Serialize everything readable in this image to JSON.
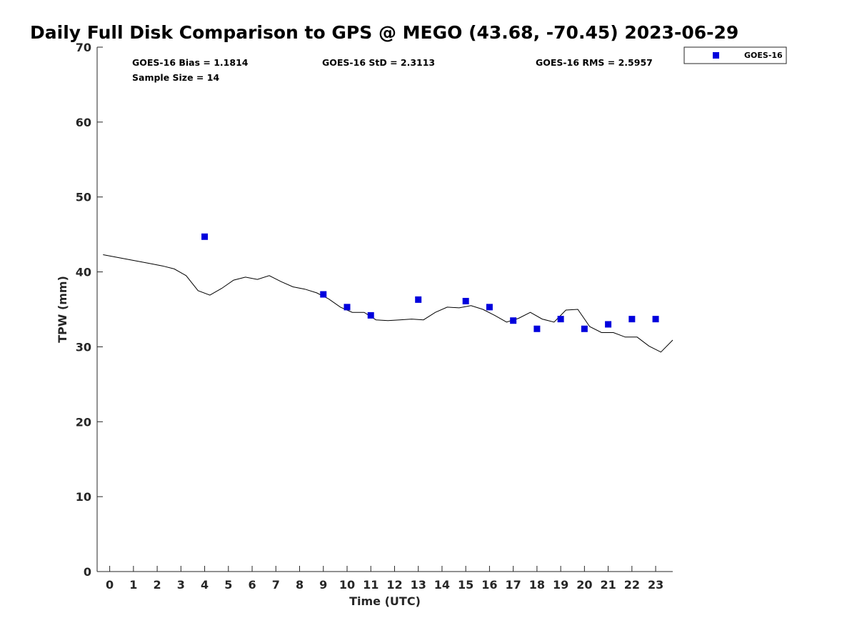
{
  "chart_data": {
    "type": "scatter",
    "title": "Daily Full Disk Comparison to GPS @ MEGO (43.68, -70.45) 2023-06-29",
    "xlabel": "Time (UTC)",
    "ylabel": "TPW (mm)",
    "xlim": [
      -0.5,
      23.75
    ],
    "ylim": [
      0,
      70
    ],
    "xticks": [
      0,
      1,
      2,
      3,
      4,
      5,
      6,
      7,
      8,
      9,
      10,
      11,
      12,
      13,
      14,
      15,
      16,
      17,
      18,
      19,
      20,
      21,
      22,
      23
    ],
    "yticks": [
      0,
      10,
      20,
      30,
      40,
      50,
      60,
      70
    ],
    "grid": false,
    "legend_position": "top-right, outside plot",
    "stats": {
      "bias": "GOES-16 Bias = 1.1814",
      "std": "GOES-16 StD = 2.3113",
      "rms": "GOES-16 RMS = 2.5957",
      "sample": "Sample Size = 14"
    },
    "series": [
      {
        "name": "GOES-16",
        "kind": "scatter",
        "marker": "square",
        "color": "#0000dd",
        "x": [
          4,
          9,
          10,
          11,
          13,
          15,
          16,
          17,
          18,
          19,
          20,
          21,
          22,
          23
        ],
        "y": [
          44.7,
          37.0,
          35.3,
          34.2,
          36.3,
          36.1,
          35.3,
          33.5,
          32.4,
          33.7,
          32.4,
          33.0,
          33.7,
          33.7
        ]
      },
      {
        "kind": "line",
        "color": "#000000",
        "x": [
          -0.25,
          0.25,
          0.75,
          1.25,
          1.75,
          2.25,
          2.75,
          3.25,
          3.75,
          4.25,
          4.75,
          5.25,
          5.75,
          6.25,
          6.75,
          7.25,
          7.75,
          8.25,
          8.75,
          9.25,
          9.75,
          10.25,
          10.75,
          11.25,
          11.75,
          12.25,
          12.75,
          13.25,
          13.75,
          14.25,
          14.75,
          15.25,
          15.75,
          16.25,
          16.75,
          17.25,
          17.75,
          18.25,
          18.75,
          19.25,
          19.75,
          20.25,
          20.75,
          21.25,
          21.75,
          22.25,
          22.75,
          23.25,
          23.75
        ],
        "y": [
          42.3,
          42.0,
          41.7,
          41.4,
          41.1,
          40.8,
          40.4,
          39.5,
          37.5,
          36.9,
          37.8,
          38.9,
          39.3,
          39.0,
          39.5,
          38.7,
          38.0,
          37.7,
          37.2,
          36.4,
          35.3,
          34.6,
          34.6,
          33.6,
          33.5,
          33.6,
          33.7,
          33.6,
          34.6,
          35.3,
          35.2,
          35.5,
          35.0,
          34.2,
          33.3,
          33.8,
          34.6,
          33.7,
          33.3,
          34.9,
          35.0,
          32.7,
          31.9,
          31.9,
          31.3,
          31.3,
          30.1,
          29.3,
          30.9
        ]
      }
    ]
  }
}
